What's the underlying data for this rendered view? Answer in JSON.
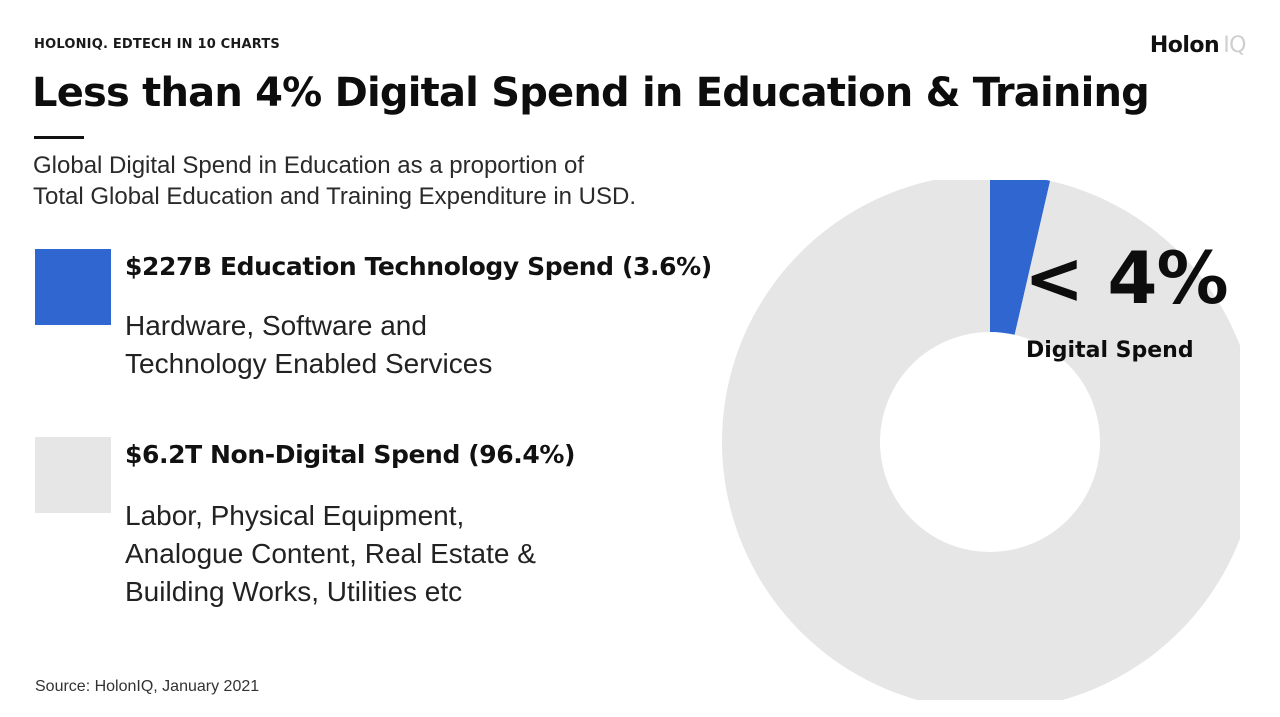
{
  "header": {
    "kicker": "HOLONIQ. EDTECH IN 10 CHARTS",
    "logo_primary": "Holon",
    "logo_secondary": "IQ"
  },
  "title": "Less than 4% Digital Spend in Education & Training",
  "subtitle": {
    "line1": "Global Digital Spend in Education as a proportion of",
    "line2": "Total Global Education and Training Expenditure in USD."
  },
  "legend": {
    "digital": {
      "heading": "$227B Education Technology Spend (3.6%)",
      "desc_line1": "Hardware, Software and",
      "desc_line2": "Technology Enabled Services"
    },
    "nondigital": {
      "heading": "$6.2T Non-Digital Spend (96.4%)",
      "desc_line1": "Labor, Physical Equipment,",
      "desc_line2": "Analogue Content, Real Estate &",
      "desc_line3": "Building Works, Utilities etc"
    }
  },
  "callout": {
    "value": "< 4%",
    "label": "Digital Spend"
  },
  "source": "Source: HolonIQ, January 2021",
  "colors": {
    "digital": "#2f66d0",
    "nondigital": "#e6e6e6"
  },
  "chart_data": {
    "type": "pie",
    "style": "donut",
    "categories": [
      "$227B Education Technology Spend (3.6%)",
      "$6.2T Non-Digital Spend (96.4%)"
    ],
    "values": [
      3.6,
      96.4
    ],
    "units": "percent",
    "annotations": [
      "< 4%",
      "Digital Spend"
    ],
    "legend_placement": "left"
  }
}
